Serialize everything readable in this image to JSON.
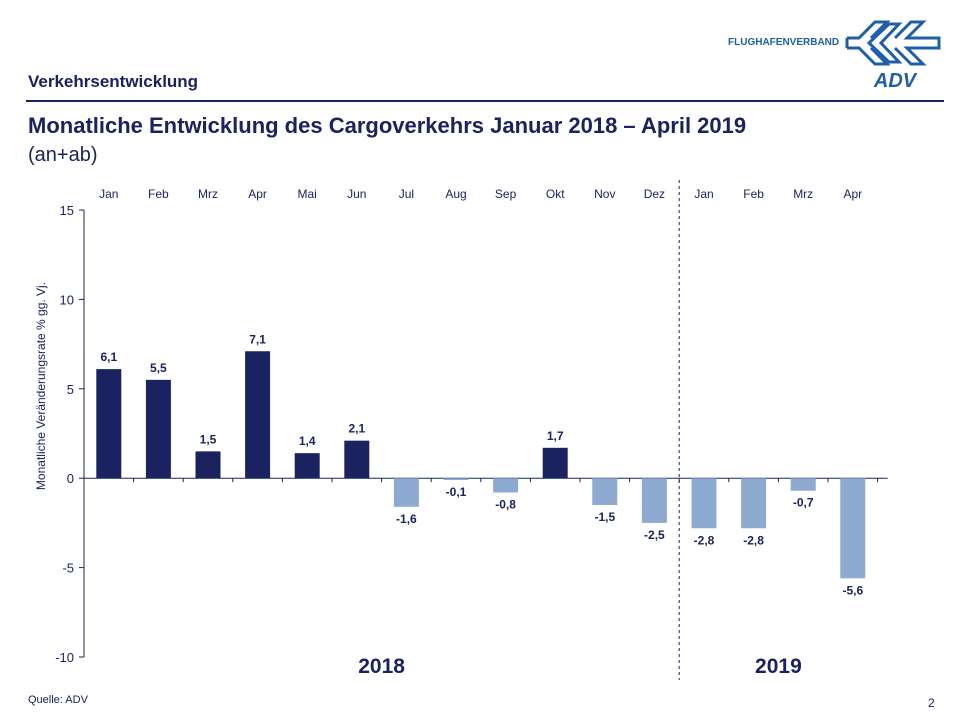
{
  "header": {
    "section": "Verkehrsentwicklung",
    "title": "Monatliche Entwicklung des Cargoverkehrs Januar 2018 – April 2019",
    "subtitle": "(an+ab)",
    "logo": {
      "text": "FLUGHAFENVERBAND",
      "mark": "ADV"
    }
  },
  "footer": {
    "source": "Quelle: ADV",
    "page": "2"
  },
  "colors": {
    "positive": "#1a2360",
    "negative": "#8eaad0",
    "text": "#1a2360"
  },
  "chart_data": {
    "type": "bar",
    "categories": [
      "Jan",
      "Feb",
      "Mrz",
      "Apr",
      "Mai",
      "Jun",
      "Jul",
      "Aug",
      "Sep",
      "Okt",
      "Nov",
      "Dez",
      "Jan",
      "Feb",
      "Mrz",
      "Apr"
    ],
    "groups": [
      {
        "label": "2018",
        "count": 12
      },
      {
        "label": "2019",
        "count": 4
      }
    ],
    "values": [
      6.1,
      5.5,
      1.5,
      7.1,
      1.4,
      2.1,
      -1.6,
      -0.1,
      -0.8,
      1.7,
      -1.5,
      -2.5,
      -2.8,
      -2.8,
      -0.7,
      -5.6
    ],
    "data_labels": [
      "6,1",
      "5,5",
      "1,5",
      "7,1",
      "1,4",
      "2,1",
      "-1,6",
      "-0,1",
      "-0,8",
      "1,7",
      "-1,5",
      "-2,5",
      "-2,8",
      "-2,8",
      "-0,7",
      "-5,6"
    ],
    "ylabel": "Monatliche Veränderungsrate % gg. Vj.",
    "ylim": [
      -10,
      15
    ],
    "yticks": [
      15,
      10,
      5,
      0,
      -5,
      -10
    ],
    "grid": false,
    "legend": "none"
  }
}
